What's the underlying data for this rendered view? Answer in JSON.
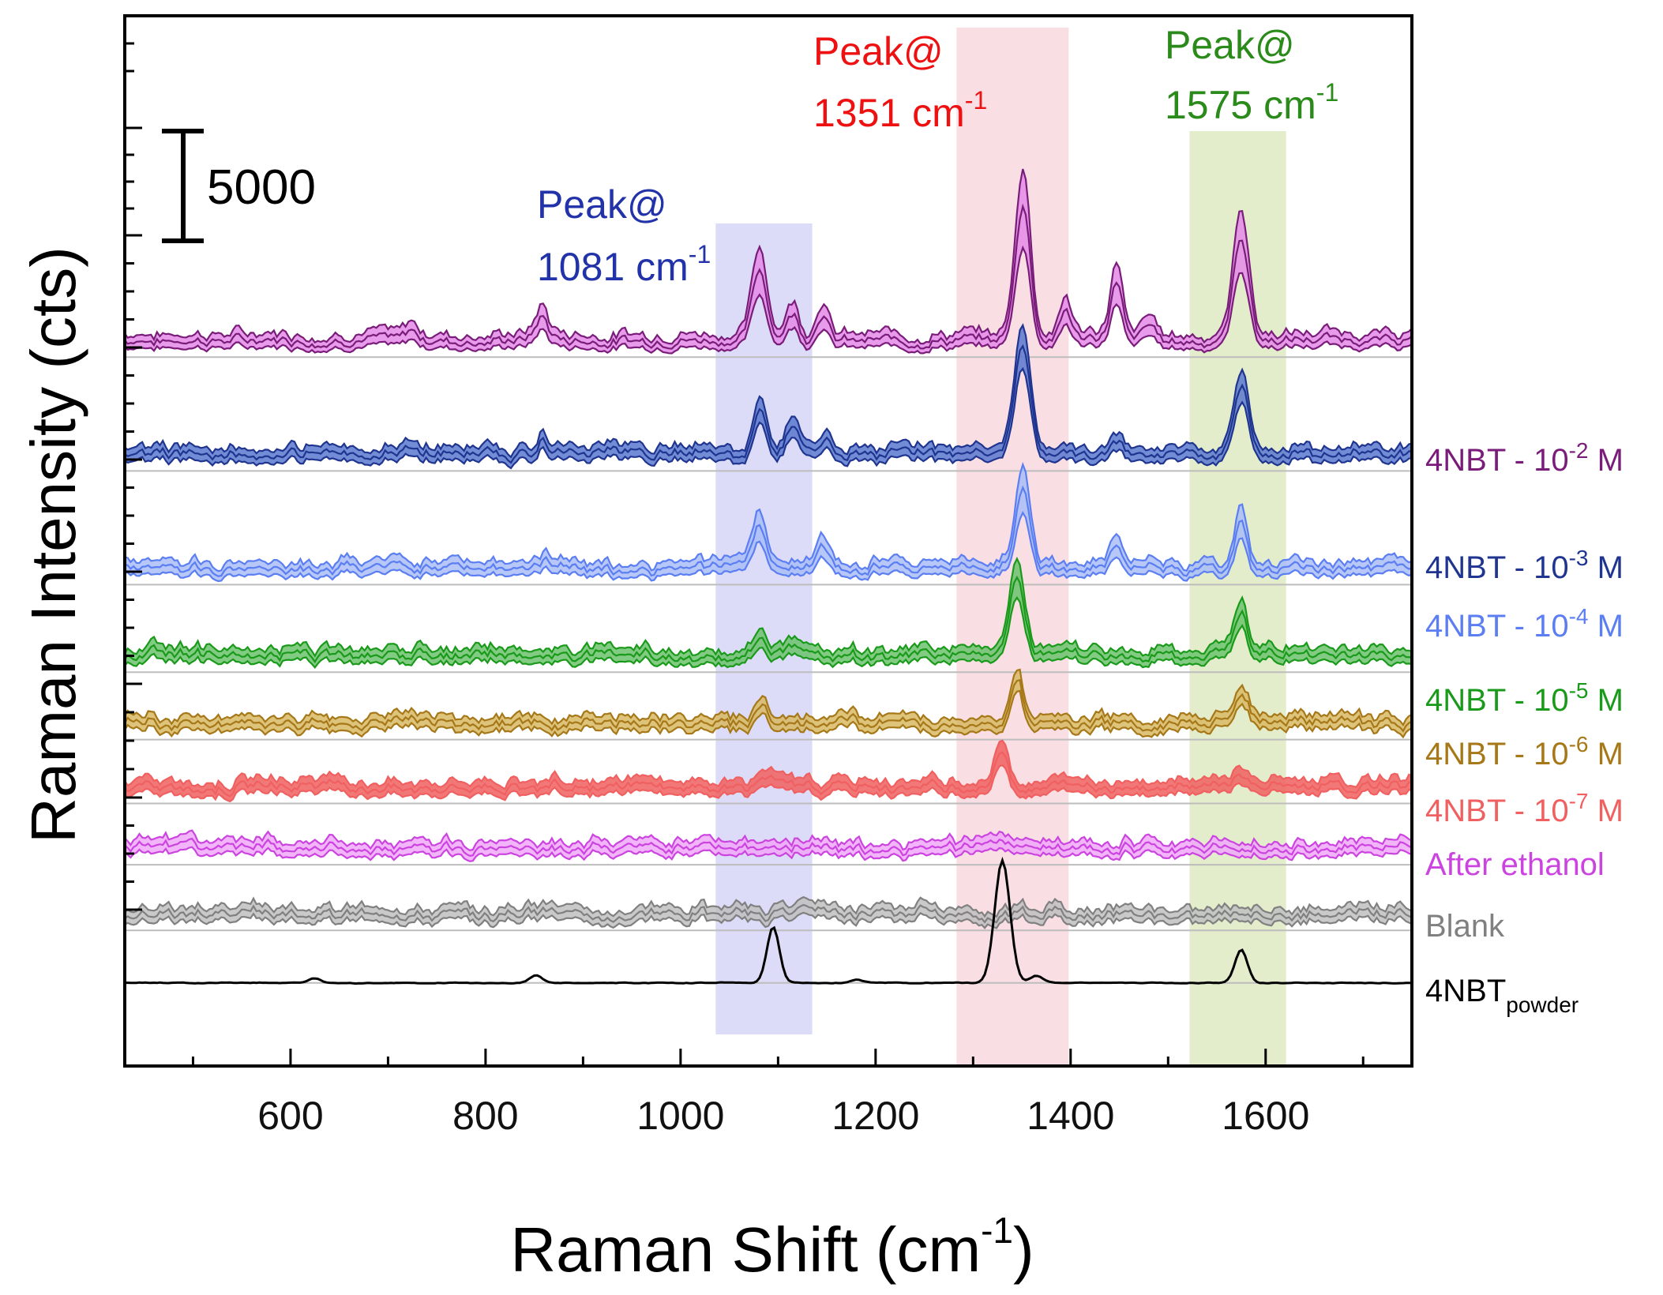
{
  "chart_data": {
    "type": "line",
    "title": "",
    "xlabel": "Raman Shift",
    "xlabel_unit_base": "cm",
    "xlabel_unit_exp": "-1",
    "ylabel": "Raman Intensity (cts)",
    "xlim": [
      430,
      1750
    ],
    "x_ticks": [
      600,
      800,
      1000,
      1200,
      1400,
      1600
    ],
    "x_tick_labels": [
      "600",
      "800",
      "1000",
      "1200",
      "1400",
      "1600"
    ],
    "scale_bar": {
      "label": "5000",
      "value": 5000
    },
    "peak_bands": [
      {
        "center": 1081,
        "range": [
          1036,
          1135
        ],
        "label1": "Peak@",
        "label2": "1081 cm",
        "exp": "-1",
        "color": "#2233aa",
        "fill": "#d6d6f7"
      },
      {
        "center": 1351,
        "range": [
          1283,
          1398
        ],
        "label1": "Peak@",
        "label2": "1351 cm",
        "exp": "-1",
        "color": "#ee1111",
        "fill": "#f8d9de"
      },
      {
        "center": 1575,
        "range": [
          1522,
          1621
        ],
        "label1": "Peak@",
        "label2": "1575 cm",
        "exp": "-1",
        "color": "#2a8a1a",
        "fill": "#deeac3"
      }
    ],
    "series": [
      {
        "name": "4NBT - 10",
        "exp": "-2",
        "suffix": " M",
        "color": "#7a1d7a",
        "fill": "#e58ae8",
        "baseline_offset": 82500,
        "peaks": [
          [
            1081,
            9000
          ],
          [
            1115,
            3600
          ],
          [
            1145,
            3600
          ],
          [
            1351,
            17800
          ],
          [
            1395,
            4200
          ],
          [
            1447,
            7300
          ],
          [
            1480,
            2200
          ],
          [
            1575,
            13400
          ],
          [
            858,
            3000
          ],
          [
            725,
            1200
          ]
        ],
        "band_width": 0.5
      },
      {
        "name": "4NBT - 10",
        "exp": "-3",
        "suffix": " M",
        "color": "#1f3590",
        "fill": "#5a78cf",
        "baseline_offset": 69500,
        "peaks": [
          [
            1081,
            5200
          ],
          [
            1115,
            3500
          ],
          [
            1150,
            1400
          ],
          [
            1351,
            13200
          ],
          [
            1447,
            1500
          ],
          [
            1575,
            8300
          ],
          [
            858,
            1500
          ],
          [
            725,
            700
          ]
        ],
        "band_width": 0.3
      },
      {
        "name": "4NBT - 10",
        "exp": "-4",
        "suffix": " M",
        "color": "#5b7ef2",
        "fill": "#a9bdf7",
        "baseline_offset": 56500,
        "peaks": [
          [
            1081,
            5200
          ],
          [
            1145,
            3000
          ],
          [
            1351,
            10400
          ],
          [
            1447,
            2600
          ],
          [
            1575,
            6800
          ],
          [
            858,
            800
          ]
        ],
        "band_width": 0.45
      },
      {
        "name": "4NBT - 10",
        "exp": "-5",
        "suffix": " M",
        "color": "#1a9a1a",
        "fill": "#6cc26c",
        "baseline_offset": 46500,
        "peaks": [
          [
            1081,
            2600
          ],
          [
            1115,
            1300
          ],
          [
            1345,
            9000
          ],
          [
            1575,
            5200
          ],
          [
            858,
            500
          ]
        ],
        "band_width": 0.35
      },
      {
        "name": "4NBT - 10",
        "exp": "-6",
        "suffix": " M",
        "color": "#a67818",
        "fill": "#d8b864",
        "baseline_offset": 38800,
        "peaks": [
          [
            1081,
            1600
          ],
          [
            1345,
            5200
          ],
          [
            1575,
            3200
          ]
        ],
        "band_width": 0.2
      },
      {
        "name": "4NBT - 10",
        "exp": "-7",
        "suffix": " M",
        "color": "#f06060",
        "fill": "#f06060",
        "baseline_offset": 31500,
        "peaks": [
          [
            1090,
            1000
          ],
          [
            1330,
            5000
          ],
          [
            1575,
            1800
          ]
        ],
        "band_width": 0.35
      },
      {
        "name": "After ethanol",
        "exp": "",
        "suffix": "",
        "color": "#cc44e0",
        "fill": "#f0a8f8",
        "baseline_offset": 24500,
        "peaks": [],
        "band_width": 0.35
      },
      {
        "name": "Blank",
        "exp": "",
        "suffix": "",
        "color": "#808080",
        "fill": "#c0c0c0",
        "baseline_offset": 17000,
        "peaks": [],
        "band_width": 0.25
      },
      {
        "name": "4NBT",
        "sub": "powder",
        "exp": "",
        "suffix": "",
        "color": "#000000",
        "fill": "none",
        "baseline_offset": 9500,
        "peaks": [
          [
            1095,
            6400
          ],
          [
            1330,
            14000
          ],
          [
            1575,
            3800
          ],
          [
            625,
            500
          ],
          [
            852,
            900
          ],
          [
            1180,
            400
          ],
          [
            1365,
            800
          ]
        ],
        "band_width": 0
      }
    ]
  },
  "colors": {
    "axis": "#000000",
    "baseline": "#bdbdbd"
  }
}
